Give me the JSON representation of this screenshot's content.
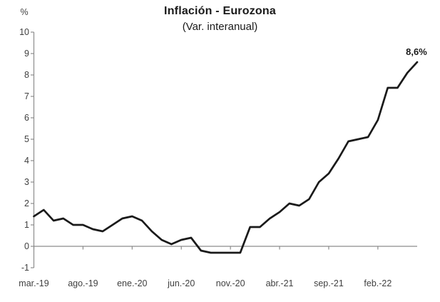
{
  "chart_data": {
    "type": "line",
    "title": "Inflación - Eurozona",
    "subtitle": "(Var. interanual)",
    "ylabel": "%",
    "xlabel": "",
    "x": [
      "mar.-19",
      "abr.-19",
      "may.-19",
      "jun.-19",
      "jul.-19",
      "ago.-19",
      "sep.-19",
      "oct.-19",
      "nov.-19",
      "dic.-19",
      "ene.-20",
      "feb.-20",
      "mar.-20",
      "abr.-20",
      "may.-20",
      "jun.-20",
      "jul.-20",
      "ago.-20",
      "sep.-20",
      "oct.-20",
      "nov.-20",
      "dic.-20",
      "ene.-21",
      "feb.-21",
      "mar.-21",
      "abr.-21",
      "may.-21",
      "jun.-21",
      "jul.-21",
      "ago.-21",
      "sep.-21",
      "oct.-21",
      "nov.-21",
      "dic.-21",
      "ene.-22",
      "feb.-22",
      "mar.-22",
      "abr.-22",
      "may.-22",
      "jun.-22"
    ],
    "values": [
      1.4,
      1.7,
      1.2,
      1.3,
      1.0,
      1.0,
      0.8,
      0.7,
      1.0,
      1.3,
      1.4,
      1.2,
      0.7,
      0.3,
      0.1,
      0.3,
      0.4,
      -0.2,
      -0.3,
      -0.3,
      -0.3,
      -0.3,
      0.9,
      0.9,
      1.3,
      1.6,
      2.0,
      1.9,
      2.2,
      3.0,
      3.4,
      4.1,
      4.9,
      5.0,
      5.1,
      5.9,
      7.4,
      7.4,
      8.1,
      8.6
    ],
    "x_tick_labels": [
      "mar.-19",
      "ago.-19",
      "ene.-20",
      "jun.-20",
      "nov.-20",
      "abr.-21",
      "sep.-21",
      "feb.-22"
    ],
    "x_tick_every": 5,
    "y_ticks": [
      10,
      9,
      8,
      7,
      6,
      5,
      4,
      3,
      2,
      1,
      0,
      -1
    ],
    "ylim": [
      -1,
      10
    ],
    "grid": false,
    "legend_position": "none",
    "end_label": "8,6%",
    "line_color": "#1a1a1a",
    "axis_color": "#8c8c8c",
    "tick_label_color": "#3f3f3f"
  }
}
